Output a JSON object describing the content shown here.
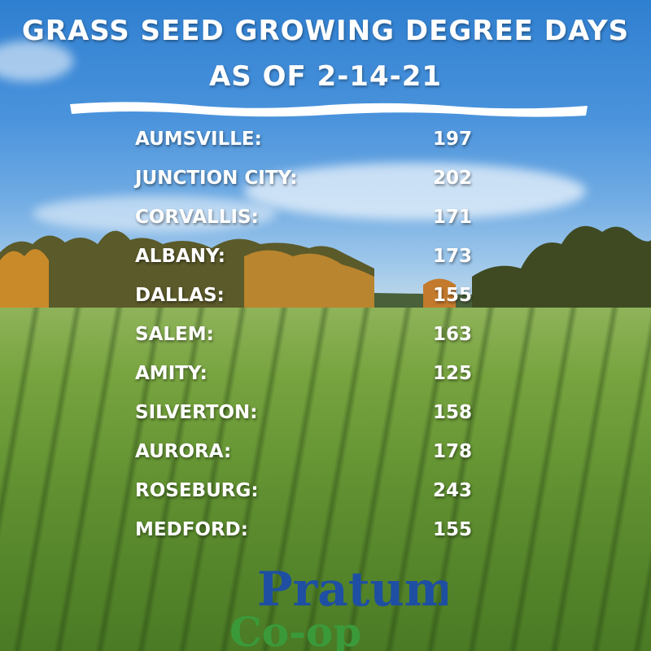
{
  "title_line1": "GRASS SEED GROWING DEGREE DAYS",
  "title_line2": "AS OF 2-14-21",
  "rows": [
    {
      "city": "AUMSVILLE:",
      "value": "197"
    },
    {
      "city": "JUNCTION CITY:",
      "value": "202"
    },
    {
      "city": "CORVALLIS:",
      "value": "171"
    },
    {
      "city": "ALBANY:",
      "value": "173"
    },
    {
      "city": "DALLAS:",
      "value": "155"
    },
    {
      "city": "SALEM:",
      "value": "163"
    },
    {
      "city": "AMITY:",
      "value": "125"
    },
    {
      "city": "SILVERTON:",
      "value": "158"
    },
    {
      "city": "AURORA:",
      "value": "178"
    },
    {
      "city": "ROSEBURG:",
      "value": "243"
    },
    {
      "city": "MEDFORD:",
      "value": "155"
    }
  ],
  "logo": {
    "line1": "Pratum",
    "line2": "Co-op",
    "color_blue": "#1e4fa3",
    "color_green": "#3a9a3a"
  }
}
